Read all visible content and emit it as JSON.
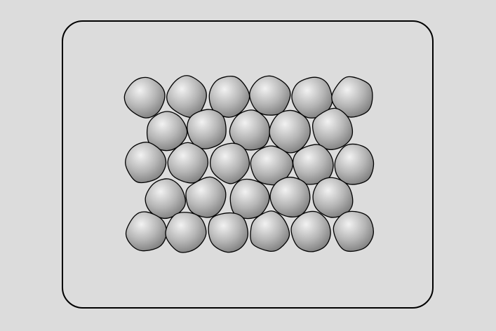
{
  "diagram": {
    "background_color": "#dcdcdc",
    "frame_color": "#000000",
    "particle": {
      "shape": "rounded-irregular-blob",
      "fill_light": "#f2f2f2",
      "fill_mid": "#b5b5b5",
      "fill_dark": "#7a7a7a",
      "outline": "#000000"
    },
    "rows": [
      {
        "count": 6
      },
      {
        "count": 5
      },
      {
        "count": 6
      },
      {
        "count": 5
      },
      {
        "count": 6
      }
    ]
  }
}
